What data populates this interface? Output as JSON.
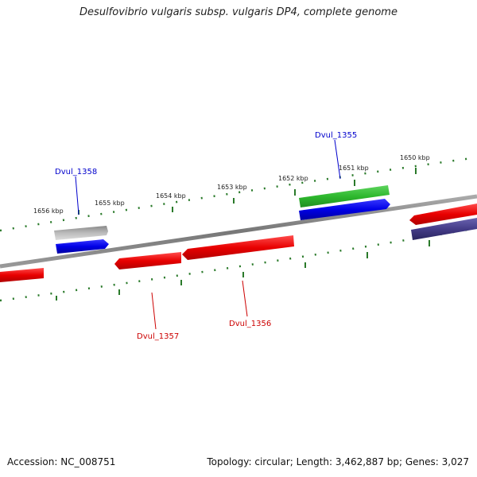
{
  "title": "Desulfovibrio vulgaris subsp. vulgaris DP4, complete genome",
  "footer": {
    "accession": "Accession: NC_008751",
    "summary": "Topology: circular; Length: 3,462,887 bp; Genes: 3,027"
  },
  "ticks": [
    {
      "label": "1656 kbp"
    },
    {
      "label": "1655 kbp"
    },
    {
      "label": "1654 kbp"
    },
    {
      "label": "1653 kbp"
    },
    {
      "label": "1652 kbp"
    },
    {
      "label": "1651 kbp"
    },
    {
      "label": "1650 kbp"
    }
  ],
  "gene_labels": [
    {
      "text": "Dvul_1358",
      "color": "#0000cc"
    },
    {
      "text": "Dvul_1355",
      "color": "#0000cc"
    },
    {
      "text": "Dvul_1357",
      "color": "#cc0000"
    },
    {
      "text": "Dvul_1356",
      "color": "#cc0000"
    }
  ],
  "colors": {
    "backbone": "#808080",
    "tick": "#2a7a2a",
    "red_gene": "#ff0000",
    "blue_gene": "#0000ee",
    "green_gene": "#33bb33",
    "gray_gene": "#aaaaaa",
    "purple_gene": "#443c88"
  }
}
